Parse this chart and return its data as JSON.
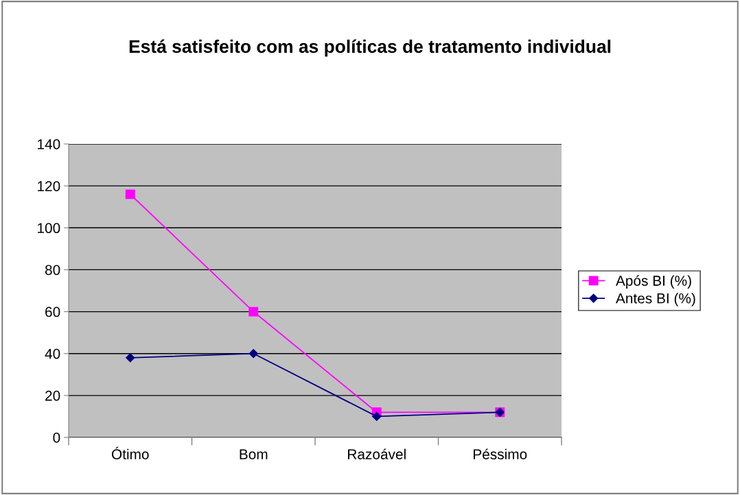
{
  "chart_data": {
    "type": "line",
    "title": "Está satisfeito com as políticas de tratamento individual",
    "categories": [
      "Ótimo",
      "Bom",
      "Razoável",
      "Péssimo"
    ],
    "series": [
      {
        "name": "Após BI (%)",
        "color": "#ff00ff",
        "marker": "square",
        "values": [
          116,
          60,
          12,
          12
        ]
      },
      {
        "name": "Antes BI (%)",
        "color": "#000080",
        "marker": "diamond",
        "values": [
          38,
          40,
          10,
          12
        ]
      }
    ],
    "ylim": [
      0,
      140
    ],
    "yticks": [
      0,
      20,
      40,
      60,
      80,
      100,
      120,
      140
    ],
    "grid": "y",
    "legend": "right"
  }
}
